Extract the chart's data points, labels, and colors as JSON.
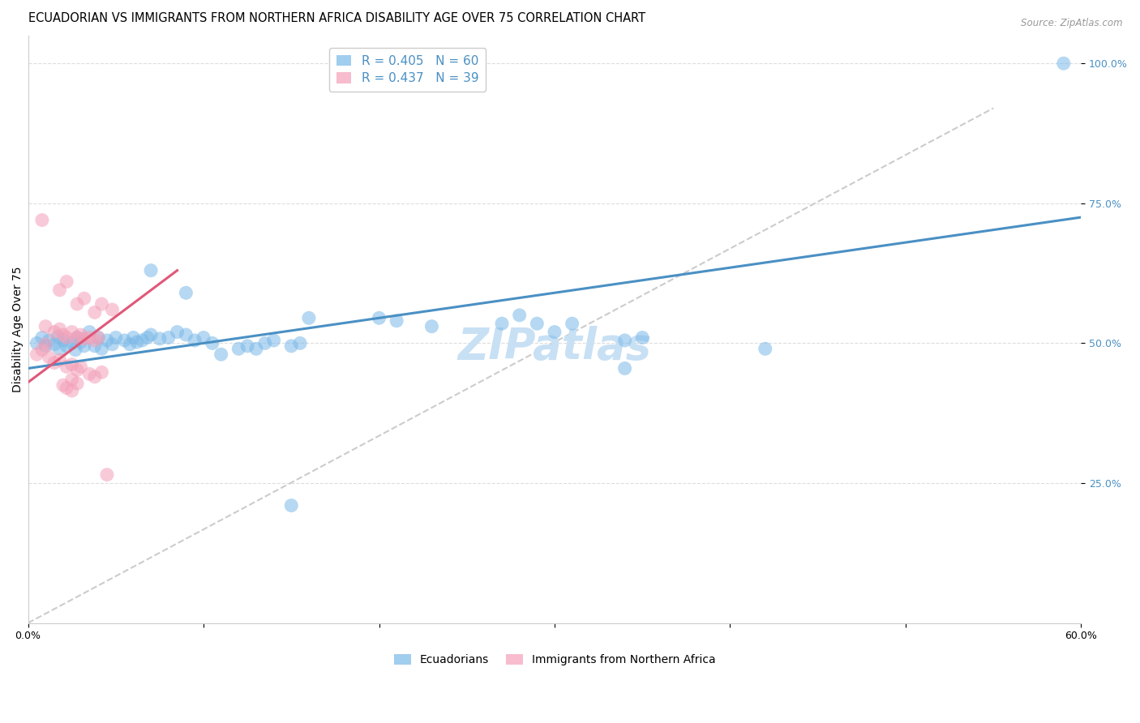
{
  "title": "ECUADORIAN VS IMMIGRANTS FROM NORTHERN AFRICA DISABILITY AGE OVER 75 CORRELATION CHART",
  "source": "Source: ZipAtlas.com",
  "ylabel": "Disability Age Over 75",
  "xlim": [
    0.0,
    0.6
  ],
  "ylim": [
    0.0,
    1.05
  ],
  "xticks": [
    0.0,
    0.1,
    0.2,
    0.3,
    0.4,
    0.5,
    0.6
  ],
  "xticklabels": [
    "0.0%",
    "",
    "",
    "",
    "",
    "",
    "60.0%"
  ],
  "ytick_positions": [
    0.25,
    0.5,
    0.75,
    1.0
  ],
  "ytick_labels": [
    "25.0%",
    "50.0%",
    "75.0%",
    "100.0%"
  ],
  "legend_R1": "R = 0.405",
  "legend_N1": "N = 60",
  "legend_R2": "R = 0.437",
  "legend_N2": "N = 39",
  "watermark": "ZIPatlas",
  "blue_color": "#7ab8e8",
  "pink_color": "#f4a0b8",
  "blue_scatter": [
    [
      0.005,
      0.5
    ],
    [
      0.008,
      0.51
    ],
    [
      0.01,
      0.495
    ],
    [
      0.012,
      0.505
    ],
    [
      0.015,
      0.498
    ],
    [
      0.017,
      0.512
    ],
    [
      0.018,
      0.49
    ],
    [
      0.02,
      0.505
    ],
    [
      0.022,
      0.495
    ],
    [
      0.025,
      0.5
    ],
    [
      0.027,
      0.488
    ],
    [
      0.028,
      0.51
    ],
    [
      0.03,
      0.502
    ],
    [
      0.032,
      0.495
    ],
    [
      0.035,
      0.52
    ],
    [
      0.038,
      0.495
    ],
    [
      0.04,
      0.51
    ],
    [
      0.042,
      0.49
    ],
    [
      0.045,
      0.505
    ],
    [
      0.048,
      0.498
    ],
    [
      0.05,
      0.51
    ],
    [
      0.055,
      0.505
    ],
    [
      0.058,
      0.498
    ],
    [
      0.06,
      0.51
    ],
    [
      0.062,
      0.502
    ],
    [
      0.065,
      0.505
    ],
    [
      0.068,
      0.51
    ],
    [
      0.07,
      0.515
    ],
    [
      0.075,
      0.508
    ],
    [
      0.08,
      0.51
    ],
    [
      0.085,
      0.52
    ],
    [
      0.09,
      0.515
    ],
    [
      0.095,
      0.505
    ],
    [
      0.1,
      0.51
    ],
    [
      0.105,
      0.5
    ],
    [
      0.11,
      0.48
    ],
    [
      0.12,
      0.49
    ],
    [
      0.125,
      0.495
    ],
    [
      0.13,
      0.49
    ],
    [
      0.135,
      0.5
    ],
    [
      0.14,
      0.505
    ],
    [
      0.15,
      0.495
    ],
    [
      0.155,
      0.5
    ],
    [
      0.07,
      0.63
    ],
    [
      0.09,
      0.59
    ],
    [
      0.16,
      0.545
    ],
    [
      0.2,
      0.545
    ],
    [
      0.21,
      0.54
    ],
    [
      0.23,
      0.53
    ],
    [
      0.27,
      0.535
    ],
    [
      0.28,
      0.55
    ],
    [
      0.29,
      0.535
    ],
    [
      0.3,
      0.52
    ],
    [
      0.31,
      0.535
    ],
    [
      0.34,
      0.505
    ],
    [
      0.35,
      0.51
    ],
    [
      0.34,
      0.455
    ],
    [
      0.42,
      0.49
    ],
    [
      0.15,
      0.21
    ],
    [
      0.59,
      1.0
    ]
  ],
  "pink_scatter": [
    [
      0.008,
      0.72
    ],
    [
      0.018,
      0.595
    ],
    [
      0.022,
      0.61
    ],
    [
      0.028,
      0.57
    ],
    [
      0.032,
      0.58
    ],
    [
      0.038,
      0.555
    ],
    [
      0.042,
      0.57
    ],
    [
      0.048,
      0.56
    ],
    [
      0.01,
      0.53
    ],
    [
      0.015,
      0.52
    ],
    [
      0.018,
      0.525
    ],
    [
      0.02,
      0.515
    ],
    [
      0.022,
      0.51
    ],
    [
      0.025,
      0.52
    ],
    [
      0.028,
      0.51
    ],
    [
      0.03,
      0.515
    ],
    [
      0.032,
      0.508
    ],
    [
      0.035,
      0.51
    ],
    [
      0.038,
      0.505
    ],
    [
      0.04,
      0.51
    ],
    [
      0.018,
      0.47
    ],
    [
      0.022,
      0.458
    ],
    [
      0.025,
      0.462
    ],
    [
      0.028,
      0.452
    ],
    [
      0.03,
      0.458
    ],
    [
      0.035,
      0.445
    ],
    [
      0.038,
      0.44
    ],
    [
      0.042,
      0.448
    ],
    [
      0.012,
      0.475
    ],
    [
      0.015,
      0.465
    ],
    [
      0.025,
      0.435
    ],
    [
      0.028,
      0.428
    ],
    [
      0.02,
      0.425
    ],
    [
      0.022,
      0.42
    ],
    [
      0.025,
      0.415
    ],
    [
      0.045,
      0.265
    ],
    [
      0.01,
      0.498
    ],
    [
      0.008,
      0.488
    ],
    [
      0.005,
      0.48
    ]
  ],
  "blue_line": {
    "x0": 0.0,
    "y0": 0.455,
    "x1": 0.6,
    "y1": 0.725
  },
  "pink_line": {
    "x0": 0.0,
    "y0": 0.43,
    "x1": 0.085,
    "y1": 0.63
  },
  "diagonal_line": {
    "x0": 0.0,
    "y0": 0.0,
    "x1": 0.55,
    "y1": 0.92
  },
  "grid_color": "#dddddd",
  "background_color": "#ffffff",
  "title_fontsize": 10.5,
  "axis_label_fontsize": 10,
  "tick_fontsize": 9,
  "watermark_fontsize": 38,
  "watermark_color": "#c8e0f4",
  "tick_color": "#4a90c4"
}
